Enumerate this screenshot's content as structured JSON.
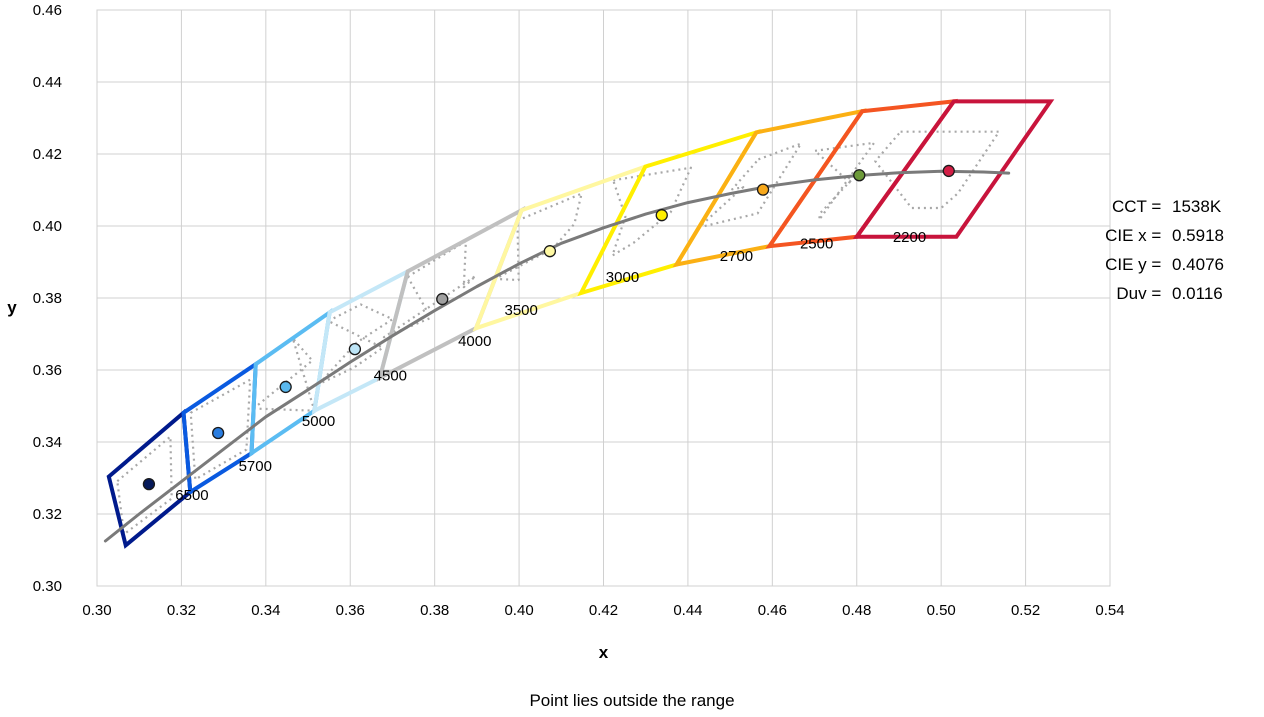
{
  "chart_data": {
    "type": "scatter",
    "xlabel": "x",
    "ylabel": "y",
    "xlim": [
      0.3,
      0.54
    ],
    "ylim": [
      0.3,
      0.46
    ],
    "xticks": [
      "0.30",
      "0.32",
      "0.34",
      "0.36",
      "0.38",
      "0.40",
      "0.42",
      "0.44",
      "0.46",
      "0.48",
      "0.50",
      "0.52",
      "0.54"
    ],
    "yticks": [
      "0.30",
      "0.32",
      "0.34",
      "0.36",
      "0.38",
      "0.40",
      "0.42",
      "0.44",
      "0.46"
    ],
    "grid": true,
    "locus": [
      [
        0.302,
        0.3125
      ],
      [
        0.31,
        0.32
      ],
      [
        0.32,
        0.329
      ],
      [
        0.33,
        0.338
      ],
      [
        0.34,
        0.347
      ],
      [
        0.35,
        0.3545
      ],
      [
        0.36,
        0.3622
      ],
      [
        0.37,
        0.3695
      ],
      [
        0.38,
        0.3765
      ],
      [
        0.39,
        0.3832
      ],
      [
        0.4,
        0.3895
      ],
      [
        0.41,
        0.3952
      ],
      [
        0.42,
        0.3995
      ],
      [
        0.43,
        0.4033
      ],
      [
        0.44,
        0.4065
      ],
      [
        0.45,
        0.409
      ],
      [
        0.46,
        0.4112
      ],
      [
        0.47,
        0.4128
      ],
      [
        0.48,
        0.414
      ],
      [
        0.49,
        0.4148
      ],
      [
        0.5,
        0.4152
      ],
      [
        0.51,
        0.415
      ],
      [
        0.516,
        0.4147
      ]
    ],
    "regions": [
      {
        "cct": "6500",
        "color": "#001a8c",
        "label_pos": [
          0.3225,
          0.3253
        ],
        "center": [
          0.3123,
          0.3283
        ],
        "outer": [
          [
            0.3028,
            0.3304
          ],
          [
            0.3205,
            0.3481
          ],
          [
            0.3221,
            0.3261
          ],
          [
            0.3068,
            0.3113
          ]
        ],
        "inner": [
          [
            0.3048,
            0.3291
          ],
          [
            0.3174,
            0.3415
          ],
          [
            0.3177,
            0.3243
          ],
          [
            0.3064,
            0.3144
          ]
        ]
      },
      {
        "cct": "5700",
        "color": "#0a5ae0",
        "label_pos": [
          0.3375,
          0.3333
        ],
        "center": [
          0.3287,
          0.3425
        ],
        "outer": [
          [
            0.3205,
            0.3481
          ],
          [
            0.3376,
            0.3616
          ],
          [
            0.3366,
            0.3369
          ],
          [
            0.3221,
            0.3261
          ]
        ],
        "inner": [
          [
            0.3222,
            0.3481
          ],
          [
            0.3363,
            0.3573
          ],
          [
            0.3354,
            0.3379
          ],
          [
            0.3233,
            0.3296
          ]
        ]
      },
      {
        "cct": "5000",
        "color": "#5bbcf2",
        "label_pos": [
          0.3525,
          0.3459
        ],
        "center": [
          0.3447,
          0.3553
        ],
        "outer": [
          [
            0.3376,
            0.3616
          ],
          [
            0.3551,
            0.376
          ],
          [
            0.3515,
            0.3487
          ],
          [
            0.3366,
            0.3369
          ]
        ],
        "inner": [
          [
            0.3371,
            0.3493
          ],
          [
            0.3515,
            0.3487
          ],
          [
            0.3464,
            0.3688
          ],
          [
            0.351,
            0.3626
          ]
        ]
      },
      {
        "cct": "4500",
        "color": "#c4e7f7",
        "label_pos": [
          0.3695,
          0.3585
        ],
        "center": [
          0.3611,
          0.3658
        ],
        "outer": [
          [
            0.3551,
            0.376
          ],
          [
            0.3736,
            0.3874
          ],
          [
            0.367,
            0.3578
          ],
          [
            0.3515,
            0.3487
          ]
        ],
        "inner": [
          [
            0.3548,
            0.3736
          ],
          [
            0.3625,
            0.3782
          ],
          [
            0.37,
            0.3741
          ],
          [
            0.3615,
            0.3676
          ],
          [
            0.3526,
            0.3561
          ],
          [
            0.3608,
            0.3606
          ],
          [
            0.3677,
            0.3662
          ]
        ]
      },
      {
        "cct": "4000",
        "color": "#c0c0c0",
        "label_pos": [
          0.3895,
          0.3681
        ],
        "center": [
          0.3818,
          0.3797
        ],
        "outer": [
          [
            0.3736,
            0.3874
          ],
          [
            0.4006,
            0.4044
          ],
          [
            0.3898,
            0.3716
          ],
          [
            0.367,
            0.3578
          ]
        ],
        "inner": [
          [
            0.3736,
            0.3859
          ],
          [
            0.3874,
            0.3958
          ],
          [
            0.3869,
            0.383
          ],
          [
            0.3897,
            0.3861
          ],
          [
            0.368,
            0.3691
          ],
          [
            0.3789,
            0.3744
          ],
          [
            0.3777,
            0.3774
          ]
        ]
      },
      {
        "cct": "3500",
        "color": "#fff7a0",
        "label_pos": [
          0.4005,
          0.3767
        ],
        "center": [
          0.4073,
          0.393
        ],
        "outer": [
          [
            0.4006,
            0.4044
          ],
          [
            0.4299,
            0.4165
          ],
          [
            0.4147,
            0.3814
          ],
          [
            0.3898,
            0.3716
          ]
        ],
        "inner": [
          [
            0.3996,
            0.4015
          ],
          [
            0.4148,
            0.409
          ],
          [
            0.4131,
            0.4006
          ],
          [
            0.408,
            0.3937
          ],
          [
            0.3943,
            0.3853
          ],
          [
            0.3999,
            0.385
          ]
        ]
      },
      {
        "cct": "3000",
        "color": "#ffef00",
        "label_pos": [
          0.4245,
          0.3858
        ],
        "center": [
          0.4338,
          0.403
        ],
        "outer": [
          [
            0.4299,
            0.4165
          ],
          [
            0.4562,
            0.426
          ],
          [
            0.4373,
            0.3893
          ],
          [
            0.4147,
            0.3814
          ]
        ],
        "inner": [
          [
            0.4223,
            0.4127
          ],
          [
            0.4407,
            0.4162
          ],
          [
            0.4359,
            0.4038
          ],
          [
            0.4271,
            0.3953
          ],
          [
            0.4221,
            0.3918
          ],
          [
            0.4252,
            0.4026
          ]
        ]
      },
      {
        "cct": "2700",
        "color": "#fbb014",
        "label_pos": [
          0.4515,
          0.3917
        ],
        "center": [
          0.4578,
          0.4101
        ],
        "outer": [
          [
            0.4562,
            0.426
          ],
          [
            0.4813,
            0.4319
          ],
          [
            0.4593,
            0.3944
          ],
          [
            0.4373,
            0.3893
          ]
        ],
        "inner": [
          [
            0.4567,
            0.4185
          ],
          [
            0.4668,
            0.4229
          ],
          [
            0.4565,
            0.4035
          ],
          [
            0.4426,
            0.3996
          ],
          [
            0.4531,
            0.4108
          ],
          [
            0.4505,
            0.4102
          ]
        ]
      },
      {
        "cct": "2500",
        "color": "#f45522",
        "label_pos": [
          0.4705,
          0.3952
        ],
        "center": [
          0.4806,
          0.4141
        ],
        "outer": [
          [
            0.4813,
            0.4319
          ],
          [
            0.503,
            0.4346
          ],
          [
            0.48,
            0.397
          ],
          [
            0.4593,
            0.3944
          ]
        ],
        "inner": [
          [
            0.4701,
            0.4209
          ],
          [
            0.4841,
            0.4231
          ],
          [
            0.4711,
            0.4017
          ],
          [
            0.4713,
            0.4035
          ],
          [
            0.4788,
            0.4129
          ],
          [
            0.4783,
            0.4121
          ]
        ]
      },
      {
        "cct": "2200",
        "color": "#c8143c",
        "label_pos": [
          0.4925,
          0.397
        ],
        "center": [
          0.5018,
          0.4153
        ],
        "outer": [
          [
            0.503,
            0.4346
          ],
          [
            0.5259,
            0.4346
          ],
          [
            0.5036,
            0.397
          ],
          [
            0.48,
            0.397
          ]
        ],
        "inner": [
          [
            0.4904,
            0.4262
          ],
          [
            0.5137,
            0.4262
          ],
          [
            0.504,
            0.4091
          ],
          [
            0.5,
            0.405
          ],
          [
            0.493,
            0.405
          ],
          [
            0.4844,
            0.418
          ]
        ]
      }
    ],
    "point_fills": [
      "#061a5a",
      "#2a7de0",
      "#5ab8ee",
      "#bde5f7",
      "#a0a0a0",
      "#fff9a3",
      "#ffef00",
      "#f7a81b",
      "#6d9a3a",
      "#d21e45"
    ]
  },
  "info": {
    "cct_label": "CCT = ",
    "cct_value": "1538K",
    "x_label": "CIE x = ",
    "x_value": "0.5918",
    "y_label": "CIE y = ",
    "y_value": "0.4076",
    "duv_label": "Duv = ",
    "duv_value": "0.0116"
  },
  "status_message": "Point lies outside the range"
}
